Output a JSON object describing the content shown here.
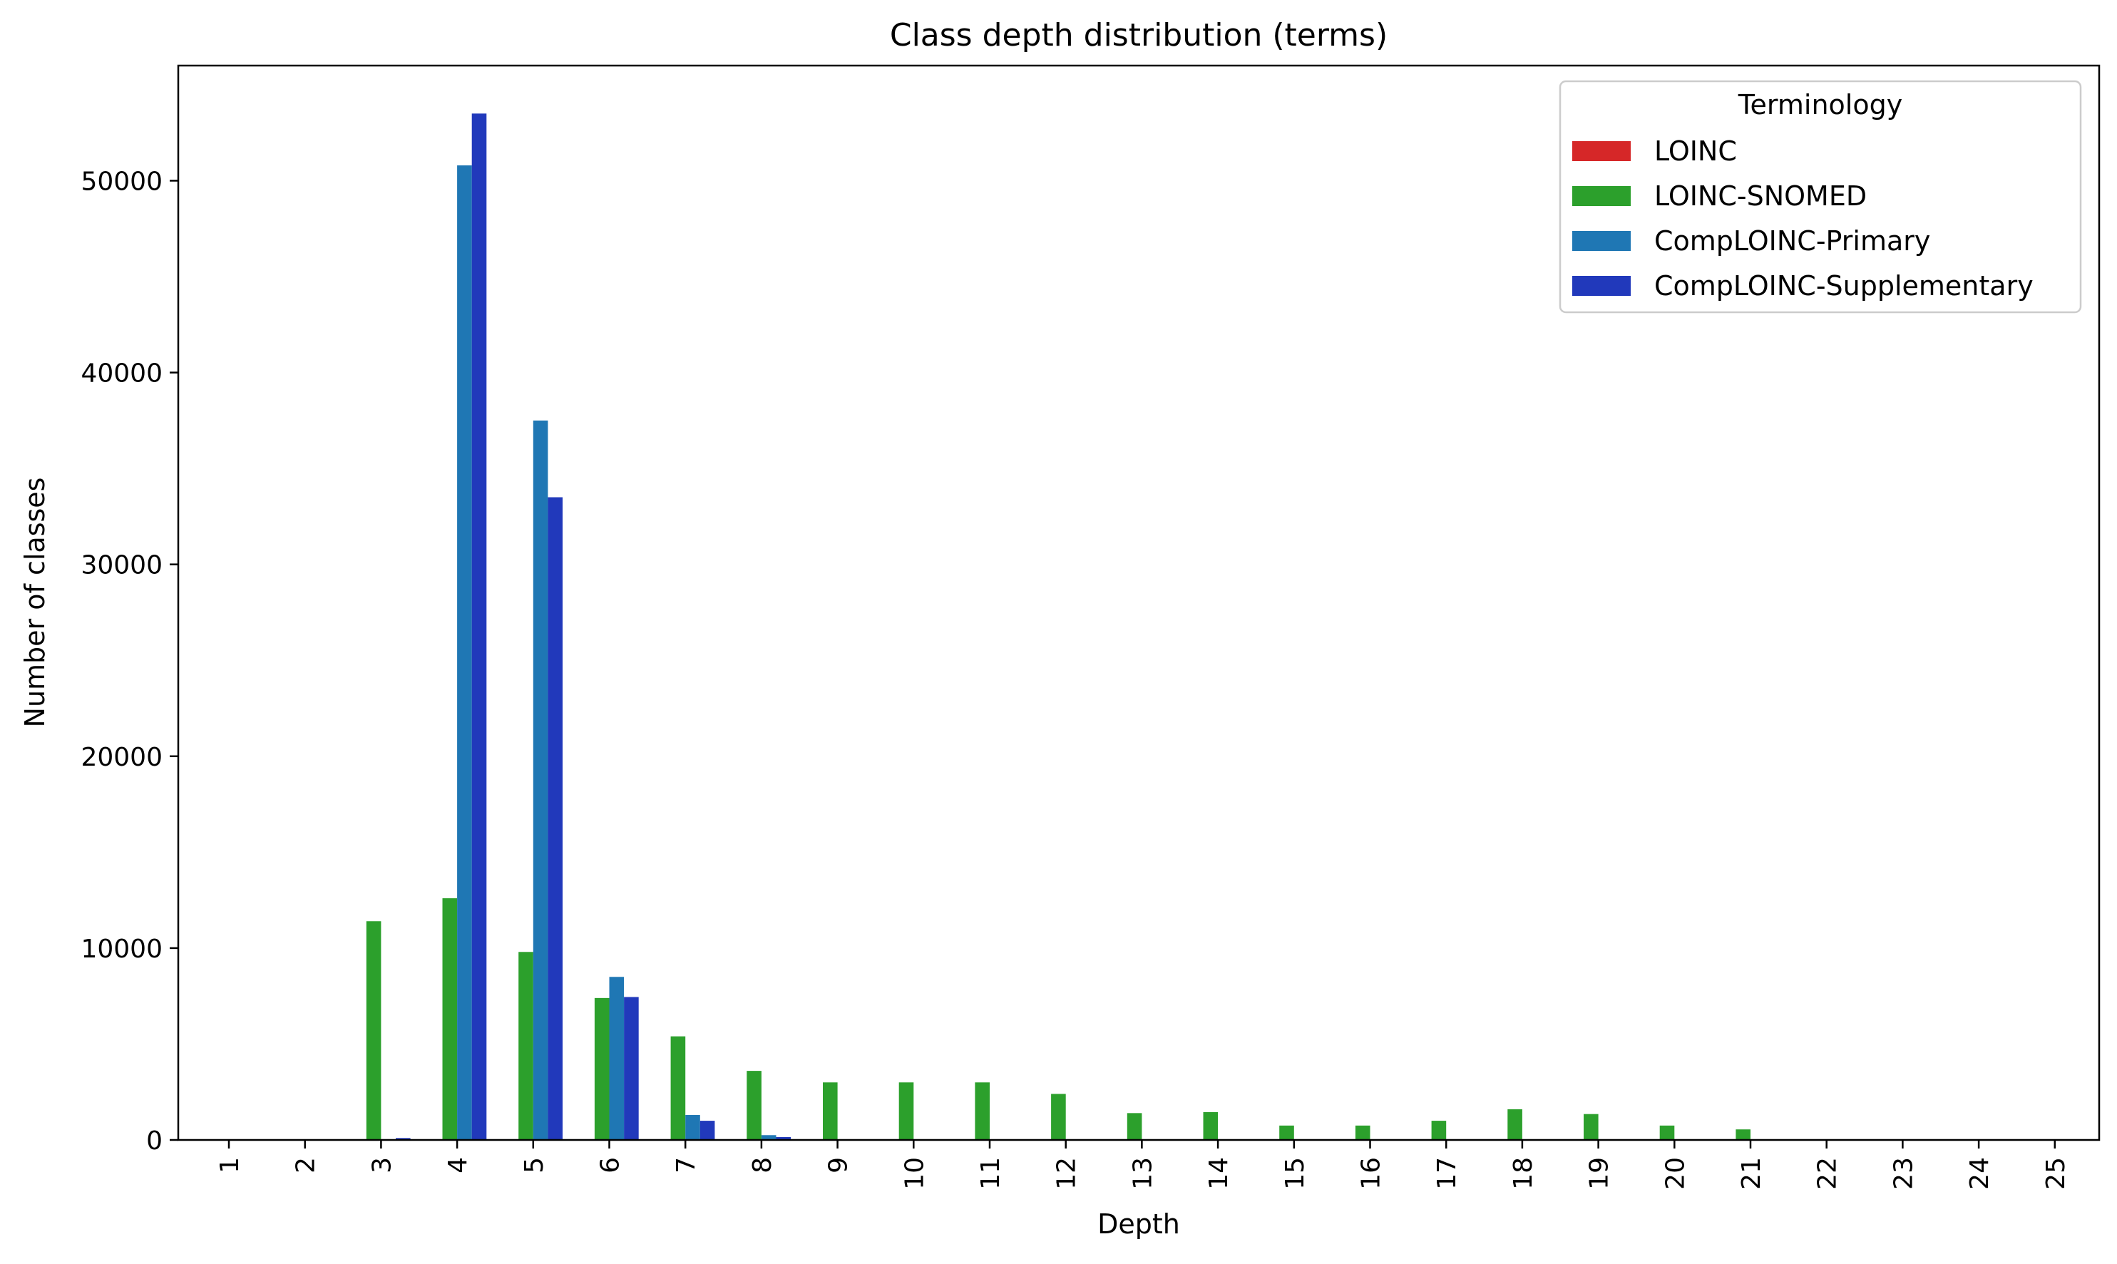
{
  "chart_data": {
    "type": "bar",
    "title": "Class depth distribution (terms)",
    "xlabel": "Depth",
    "ylabel": "Number of classes",
    "categories": [
      "1",
      "2",
      "3",
      "4",
      "5",
      "6",
      "7",
      "8",
      "9",
      "10",
      "11",
      "12",
      "13",
      "14",
      "15",
      "16",
      "17",
      "18",
      "19",
      "20",
      "21",
      "22",
      "23",
      "24",
      "25"
    ],
    "ylim": [
      0,
      56000
    ],
    "yticks": [
      0,
      10000,
      20000,
      30000,
      40000,
      50000
    ],
    "ytick_labels": [
      "0",
      "10000",
      "20000",
      "30000",
      "40000",
      "50000"
    ],
    "grid": false,
    "legend": {
      "title": "Terminology",
      "position": "top-right"
    },
    "series": [
      {
        "name": "LOINC",
        "color": "#d62728",
        "values": [
          0,
          0,
          0,
          0,
          0,
          0,
          0,
          0,
          0,
          0,
          0,
          0,
          0,
          0,
          0,
          0,
          0,
          0,
          0,
          0,
          0,
          0,
          0,
          0,
          0
        ]
      },
      {
        "name": "LOINC-SNOMED",
        "color": "#2ca02c",
        "values": [
          0,
          0,
          11400,
          12600,
          9800,
          7400,
          5400,
          3600,
          3000,
          3000,
          3000,
          2400,
          1400,
          1450,
          750,
          750,
          1000,
          1600,
          1350,
          750,
          550,
          0,
          0,
          0,
          0
        ]
      },
      {
        "name": "CompLOINC-Primary",
        "color": "#1f77b4",
        "values": [
          0,
          0,
          0,
          50800,
          37500,
          8500,
          1300,
          250,
          0,
          0,
          0,
          0,
          0,
          0,
          0,
          0,
          0,
          0,
          0,
          0,
          0,
          0,
          0,
          0,
          0
        ]
      },
      {
        "name": "CompLOINC-Supplementary",
        "color": "#2139bb",
        "values": [
          0,
          0,
          100,
          53500,
          33500,
          7450,
          1000,
          150,
          0,
          0,
          0,
          0,
          0,
          0,
          0,
          0,
          0,
          0,
          0,
          0,
          0,
          0,
          0,
          0,
          0
        ]
      }
    ]
  }
}
